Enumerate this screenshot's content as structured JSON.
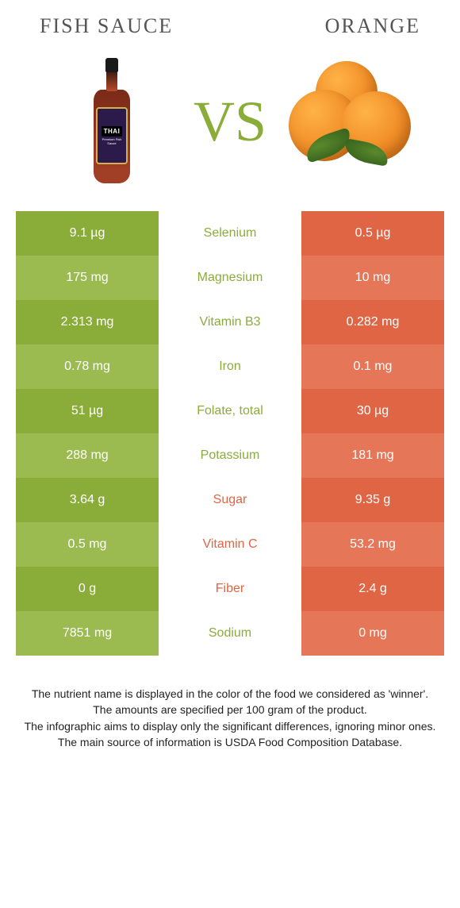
{
  "left_food": "Fish sauce",
  "right_food": "Orange",
  "vs_label": "VS",
  "colors": {
    "left_a": "#8aad3a",
    "left_b": "#9bbb50",
    "right_a": "#e06544",
    "right_b": "#e57658",
    "label_left": "#8aad3a",
    "label_right": "#e06544"
  },
  "footer_lines": [
    "The nutrient name is displayed in the color of the food we considered as 'winner'.",
    "The amounts are specified per 100 gram of the product.",
    "The infographic aims to display only the significant differences, ignoring minor ones.",
    "The main source of information is USDA Food Composition Database."
  ],
  "rows": [
    {
      "left": "9.1 µg",
      "label": "Selenium",
      "right": "0.5 µg",
      "winner": "left"
    },
    {
      "left": "175 mg",
      "label": "Magnesium",
      "right": "10 mg",
      "winner": "left"
    },
    {
      "left": "2.313 mg",
      "label": "Vitamin B3",
      "right": "0.282 mg",
      "winner": "left"
    },
    {
      "left": "0.78 mg",
      "label": "Iron",
      "right": "0.1 mg",
      "winner": "left"
    },
    {
      "left": "51 µg",
      "label": "Folate, total",
      "right": "30 µg",
      "winner": "left"
    },
    {
      "left": "288 mg",
      "label": "Potassium",
      "right": "181 mg",
      "winner": "left"
    },
    {
      "left": "3.64 g",
      "label": "Sugar",
      "right": "9.35 g",
      "winner": "right"
    },
    {
      "left": "0.5 mg",
      "label": "Vitamin C",
      "right": "53.2 mg",
      "winner": "right"
    },
    {
      "left": "0 g",
      "label": "Fiber",
      "right": "2.4 g",
      "winner": "right"
    },
    {
      "left": "7851 mg",
      "label": "Sodium",
      "right": "0 mg",
      "winner": "left"
    }
  ]
}
